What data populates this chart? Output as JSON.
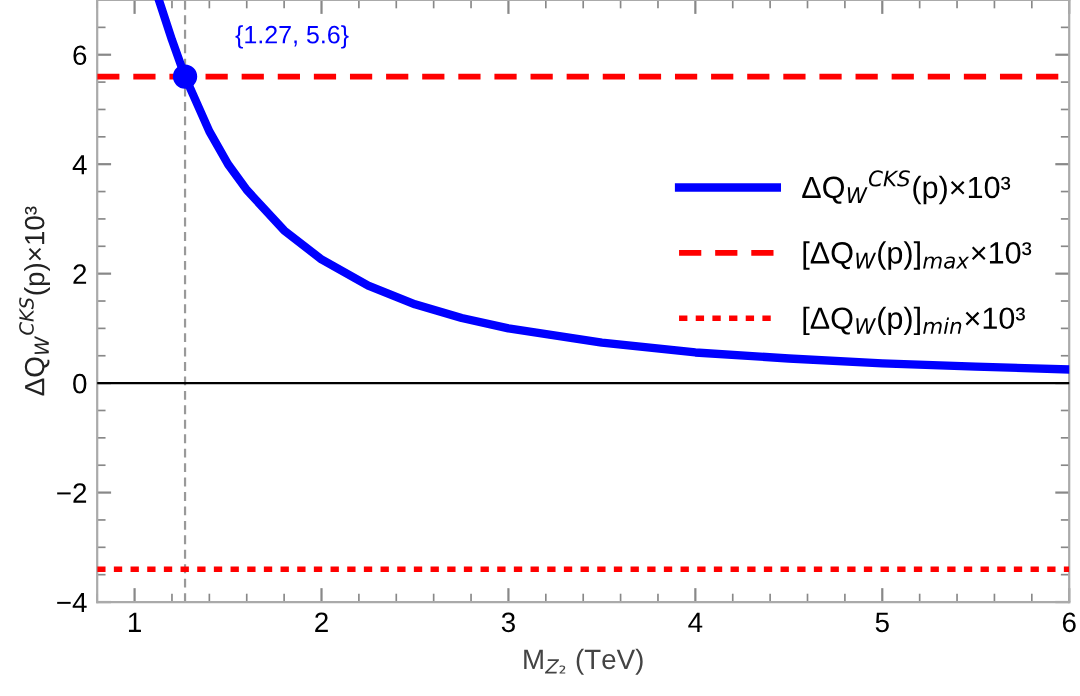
{
  "chart_data": {
    "type": "line",
    "xlabel": "M$_{Z₂}$ (TeV)",
    "ylabel": "ΔQ$_{W}$$^{CKS}$(p)×10³",
    "xlim": [
      0.8,
      6
    ],
    "ylim": [
      -4,
      7
    ],
    "xticks": [
      1,
      2,
      3,
      4,
      5,
      6
    ],
    "yticks": [
      -4,
      -2,
      0,
      2,
      4,
      6
    ],
    "grid": false,
    "legend": "right",
    "line_style": "solid",
    "marker": "none",
    "series": [
      {
        "name": "ΔQ$_{W}$$^{CKS}$(p)×10³",
        "color": "#0000ff",
        "x": [
          1.13,
          1.2,
          1.27,
          1.4,
          1.5,
          1.6,
          1.8,
          2,
          2.25,
          2.5,
          2.75,
          3,
          3.5,
          4,
          4.5,
          5,
          5.5,
          6
        ],
        "values": [
          7.0,
          6.27,
          5.6,
          4.6,
          4.0,
          3.53,
          2.79,
          2.26,
          1.78,
          1.44,
          1.19,
          1.0,
          0.74,
          0.56,
          0.45,
          0.36,
          0.3,
          0.25
        ]
      },
      {
        "type": "scatter",
        "marker": "circle",
        "color": "#0000ff",
        "x": [
          1.27
        ],
        "values": [
          5.6
        ]
      }
    ],
    "ref_lines": [
      {
        "axis": "y",
        "value": 5.6,
        "label": "[ΔQ$_{W}$(p)]$_{max}$×10³",
        "color": "#ff0000",
        "line_style": "dashed"
      },
      {
        "axis": "y",
        "value": -3.4,
        "label": "[ΔQ$_{W}$(p)]$_{min}$×10³",
        "color": "#ff0000",
        "line_style": "dotted"
      },
      {
        "axis": "y",
        "value": 0,
        "color": "#000000",
        "line_style": "solid"
      },
      {
        "axis": "x",
        "value": 1.27,
        "color": "#999999",
        "line_style": "dashed"
      }
    ],
    "annotations": [
      {
        "text": "{1.27, 5.6}",
        "x": 1.27,
        "y": 5.6
      }
    ]
  }
}
